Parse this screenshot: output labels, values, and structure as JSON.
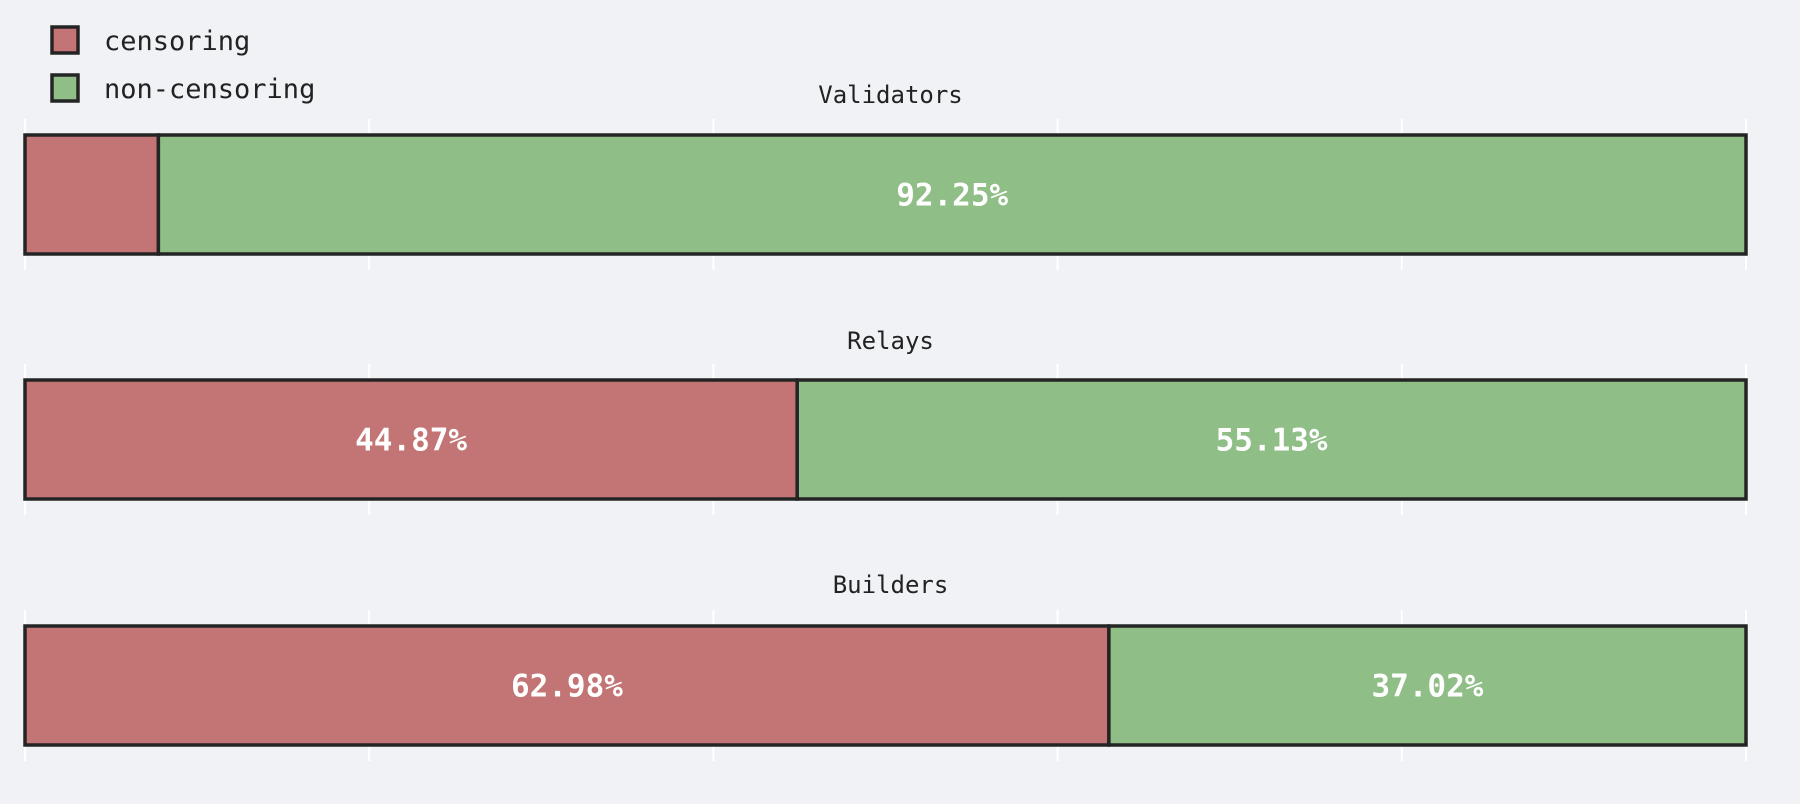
{
  "chart_data": {
    "type": "bar",
    "orientation": "horizontal",
    "stacked": true,
    "normalized_percent": true,
    "xlim": [
      0,
      100
    ],
    "legend": {
      "placement": "top-left",
      "entries": [
        {
          "key": "censoring",
          "label": "censoring",
          "color": "#c27574"
        },
        {
          "key": "non_censoring",
          "label": "non-censoring",
          "color": "#8fbe87"
        }
      ]
    },
    "panels": [
      {
        "title": "Validators",
        "segments": [
          {
            "series": "censoring",
            "value": 7.75,
            "label": ""
          },
          {
            "series": "non_censoring",
            "value": 92.25,
            "label": "92.25%"
          }
        ]
      },
      {
        "title": "Relays",
        "segments": [
          {
            "series": "censoring",
            "value": 44.87,
            "label": "44.87%"
          },
          {
            "series": "non_censoring",
            "value": 55.13,
            "label": "55.13%"
          }
        ]
      },
      {
        "title": "Builders",
        "segments": [
          {
            "series": "censoring",
            "value": 62.98,
            "label": "62.98%"
          },
          {
            "series": "non_censoring",
            "value": 37.02,
            "label": "37.02%"
          }
        ]
      }
    ],
    "grid": false,
    "tick_labels": "none"
  },
  "colors": {
    "background": "#f1f2f6",
    "border": "#242424",
    "tick": "#ffffff",
    "text": "#222222",
    "bar_label": "#ffffff"
  }
}
